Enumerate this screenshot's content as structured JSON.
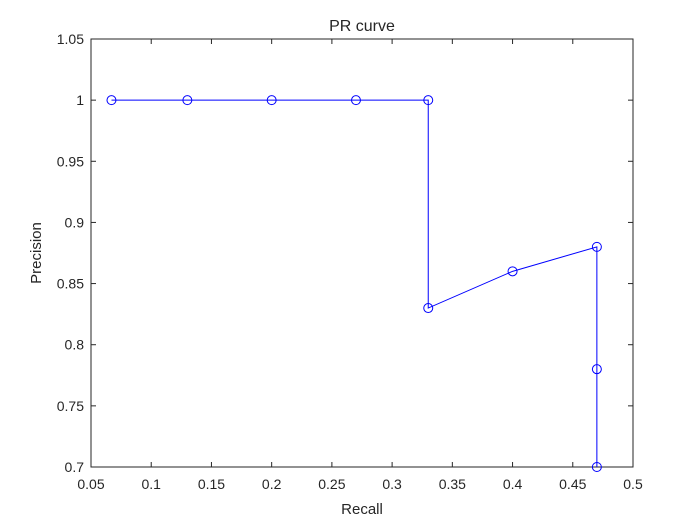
{
  "chart_data": {
    "type": "line",
    "title": "PR curve",
    "xlabel": "Recall",
    "ylabel": "Precision",
    "xlim": [
      0.05,
      0.5
    ],
    "ylim": [
      0.7,
      1.05
    ],
    "xticks": [
      "0.05",
      "0.1",
      "0.15",
      "0.2",
      "0.25",
      "0.3",
      "0.35",
      "0.4",
      "0.45",
      "0.5"
    ],
    "yticks": [
      "0.7",
      "0.75",
      "0.8",
      "0.85",
      "0.9",
      "0.95",
      "1",
      "1.05"
    ],
    "grid": false,
    "marker": "circle",
    "color": "#0000ff",
    "series": [
      {
        "x": [
          0.067,
          0.13,
          0.2,
          0.27,
          0.33,
          0.33,
          0.4,
          0.47,
          0.47,
          0.47
        ],
        "y": [
          1.0,
          1.0,
          1.0,
          1.0,
          1.0,
          0.83,
          0.86,
          0.88,
          0.78,
          0.7
        ]
      }
    ]
  }
}
